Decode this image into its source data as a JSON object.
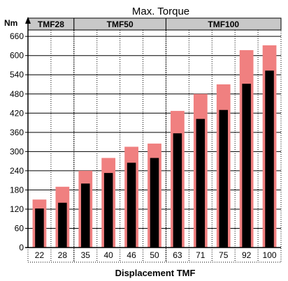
{
  "chart_data": {
    "type": "bar",
    "title": "Max. Torque",
    "y_unit": "Nm",
    "xlabel": "Displacement TMF",
    "ylim": [
      0,
      680
    ],
    "yticks": [
      0,
      60,
      120,
      180,
      240,
      300,
      360,
      420,
      480,
      540,
      600,
      660
    ],
    "categories": [
      "22",
      "28",
      "35",
      "40",
      "46",
      "50",
      "63",
      "71",
      "75",
      "92",
      "100"
    ],
    "series": [
      {
        "values": [
          150,
          190,
          240,
          280,
          315,
          325,
          427,
          480,
          510,
          617,
          632
        ]
      },
      {
        "values": [
          122,
          140,
          200,
          233,
          265,
          280,
          357,
          402,
          430,
          512,
          553
        ]
      }
    ],
    "groups": [
      {
        "label": "TMF28",
        "first": 0,
        "last": 1
      },
      {
        "label": "TMF50",
        "first": 2,
        "last": 5
      },
      {
        "label": "TMF100",
        "first": 6,
        "last": 10
      }
    ],
    "colors": {
      "peak": "#f08080",
      "base": "#000000",
      "group_header": "#c8c8c8"
    }
  }
}
